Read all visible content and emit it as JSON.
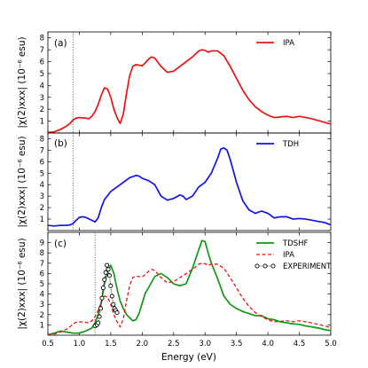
{
  "chart_data": {
    "type": "line",
    "xlabel": "Energy (eV)",
    "x_ticks": [
      "0.5",
      "1.0",
      "1.5",
      "2.0",
      "2.5",
      "3.0",
      "3.5",
      "4.0",
      "4.5",
      "5.0"
    ],
    "xlim": [
      0.5,
      5.0
    ],
    "panels": [
      {
        "label": "(a)",
        "ylabel": "|χ(2)xxx| (10⁻⁶ esu)",
        "ylim": [
          0,
          8.5
        ],
        "y_ticks": [
          1,
          2,
          3,
          4,
          5,
          6,
          7,
          8
        ],
        "vline": 0.9,
        "legend_position": "top-right",
        "series": [
          {
            "name": "IPA",
            "color": "#ee1111",
            "dash": "solid",
            "x": [
              0.5,
              0.6,
              0.7,
              0.8,
              0.85,
              0.9,
              0.95,
              1.0,
              1.1,
              1.15,
              1.2,
              1.25,
              1.3,
              1.35,
              1.4,
              1.45,
              1.5,
              1.55,
              1.6,
              1.65,
              1.7,
              1.75,
              1.8,
              1.85,
              1.9,
              2.0,
              2.05,
              2.1,
              2.15,
              2.2,
              2.3,
              2.4,
              2.5,
              2.6,
              2.7,
              2.8,
              2.9,
              2.95,
              3.0,
              3.05,
              3.1,
              3.2,
              3.3,
              3.4,
              3.5,
              3.6,
              3.7,
              3.8,
              3.9,
              4.0,
              4.1,
              4.2,
              4.3,
              4.4,
              4.5,
              4.6,
              4.7,
              4.8,
              4.9,
              5.0
            ],
            "y": [
              0.05,
              0.1,
              0.3,
              0.6,
              0.8,
              1.1,
              1.25,
              1.3,
              1.25,
              1.2,
              1.4,
              1.8,
              2.4,
              3.2,
              3.8,
              3.7,
              3.0,
              2.0,
              1.3,
              0.8,
              1.6,
              3.3,
              4.8,
              5.6,
              5.75,
              5.65,
              5.9,
              6.2,
              6.4,
              6.3,
              5.6,
              5.1,
              5.2,
              5.6,
              6.0,
              6.4,
              6.9,
              7.0,
              6.95,
              6.8,
              6.9,
              6.9,
              6.5,
              5.6,
              4.6,
              3.6,
              2.8,
              2.2,
              1.8,
              1.5,
              1.3,
              1.35,
              1.4,
              1.3,
              1.4,
              1.3,
              1.2,
              1.05,
              0.9,
              0.75
            ]
          }
        ]
      },
      {
        "label": "(b)",
        "ylabel": "|χ(2)xxx| (10⁻⁶ esu)",
        "ylim": [
          0,
          8.5
        ],
        "y_ticks": [
          1,
          2,
          3,
          4,
          5,
          6,
          7,
          8
        ],
        "vline": 0.9,
        "legend_position": "top-right",
        "series": [
          {
            "name": "TDH",
            "color": "#1111ee",
            "dash": "solid",
            "x": [
              0.5,
              0.6,
              0.7,
              0.8,
              0.85,
              0.9,
              0.95,
              1.0,
              1.05,
              1.1,
              1.2,
              1.25,
              1.3,
              1.35,
              1.4,
              1.5,
              1.6,
              1.7,
              1.8,
              1.85,
              1.9,
              1.95,
              2.0,
              2.1,
              2.2,
              2.3,
              2.4,
              2.5,
              2.6,
              2.65,
              2.7,
              2.8,
              2.9,
              3.0,
              3.1,
              3.2,
              3.25,
              3.3,
              3.35,
              3.4,
              3.5,
              3.6,
              3.7,
              3.8,
              3.9,
              4.0,
              4.1,
              4.2,
              4.3,
              4.4,
              4.5,
              4.6,
              4.7,
              4.8,
              4.9,
              5.0
            ],
            "y": [
              0.45,
              0.4,
              0.45,
              0.45,
              0.5,
              0.6,
              0.9,
              1.15,
              1.2,
              1.15,
              0.9,
              0.75,
              1.1,
              2.0,
              2.7,
              3.4,
              3.8,
              4.2,
              4.6,
              4.7,
              4.8,
              4.75,
              4.55,
              4.35,
              4.0,
              3.0,
              2.65,
              2.8,
              3.1,
              3.0,
              2.7,
              3.0,
              3.8,
              4.2,
              5.0,
              6.3,
              7.1,
              7.2,
              7.0,
              6.2,
              4.2,
              2.6,
              1.8,
              1.5,
              1.7,
              1.5,
              1.1,
              1.2,
              1.2,
              1.0,
              1.05,
              1.0,
              0.9,
              0.8,
              0.7,
              0.5
            ]
          }
        ]
      },
      {
        "label": "(c)",
        "ylabel": "|χ(2)xxx| (10⁻⁶ esu)",
        "ylim": [
          0,
          10
        ],
        "y_ticks": [
          1,
          2,
          3,
          4,
          5,
          6,
          7,
          8,
          9
        ],
        "vline": 1.25,
        "legend_position": "top-right",
        "series": [
          {
            "name": "TDSHF",
            "color": "#119911",
            "dash": "solid",
            "x": [
              0.5,
              0.6,
              0.7,
              0.8,
              0.9,
              1.0,
              1.1,
              1.2,
              1.25,
              1.3,
              1.35,
              1.4,
              1.45,
              1.5,
              1.55,
              1.6,
              1.65,
              1.7,
              1.75,
              1.8,
              1.85,
              1.9,
              1.95,
              2.0,
              2.05,
              2.1,
              2.2,
              2.3,
              2.4,
              2.5,
              2.6,
              2.7,
              2.8,
              2.9,
              2.95,
              3.0,
              3.05,
              3.1,
              3.2,
              3.3,
              3.4,
              3.5,
              3.6,
              3.7,
              3.8,
              3.9,
              4.0,
              4.1,
              4.2,
              4.3,
              4.4,
              4.5,
              4.6,
              4.7,
              4.8,
              4.9,
              5.0
            ],
            "y": [
              0.05,
              0.2,
              0.4,
              0.3,
              0.2,
              0.2,
              0.4,
              0.7,
              1.2,
              2.0,
              3.2,
              5.0,
              6.2,
              6.8,
              6.0,
              4.5,
              3.3,
              2.6,
              2.0,
              1.7,
              1.4,
              1.5,
              2.1,
              3.1,
              4.1,
              4.6,
              5.7,
              6.0,
              5.6,
              5.0,
              4.8,
              5.0,
              6.5,
              8.3,
              9.2,
              9.1,
              8.0,
              7.0,
              5.5,
              3.8,
              3.0,
              2.6,
              2.3,
              2.1,
              1.9,
              1.9,
              1.6,
              1.5,
              1.3,
              1.2,
              1.1,
              1.05,
              0.9,
              0.8,
              0.7,
              0.55,
              0.45
            ]
          },
          {
            "name": "IPA",
            "color": "#ee1111",
            "dash": "dashed",
            "x": [
              0.5,
              0.6,
              0.7,
              0.8,
              0.85,
              0.9,
              0.95,
              1.0,
              1.1,
              1.15,
              1.2,
              1.25,
              1.3,
              1.35,
              1.4,
              1.45,
              1.5,
              1.55,
              1.6,
              1.65,
              1.7,
              1.75,
              1.8,
              1.85,
              1.9,
              2.0,
              2.05,
              2.1,
              2.15,
              2.2,
              2.3,
              2.4,
              2.5,
              2.6,
              2.7,
              2.8,
              2.9,
              2.95,
              3.0,
              3.05,
              3.1,
              3.2,
              3.3,
              3.4,
              3.5,
              3.6,
              3.7,
              3.8,
              3.9,
              4.0,
              4.1,
              4.2,
              4.3,
              4.4,
              4.5,
              4.6,
              4.7,
              4.8,
              4.9,
              5.0
            ],
            "y": [
              0.05,
              0.1,
              0.3,
              0.6,
              0.8,
              1.1,
              1.25,
              1.3,
              1.25,
              1.2,
              1.4,
              1.8,
              2.4,
              3.2,
              3.8,
              3.7,
              3.0,
              2.0,
              1.3,
              0.8,
              1.6,
              3.3,
              4.8,
              5.6,
              5.75,
              5.65,
              5.9,
              6.2,
              6.4,
              6.3,
              5.6,
              5.1,
              5.2,
              5.6,
              6.0,
              6.4,
              6.9,
              7.0,
              6.95,
              6.8,
              6.9,
              6.9,
              6.5,
              5.6,
              4.6,
              3.6,
              2.8,
              2.2,
              1.8,
              1.5,
              1.3,
              1.35,
              1.4,
              1.3,
              1.4,
              1.3,
              1.2,
              1.05,
              0.9,
              0.75
            ]
          },
          {
            "name": "EXPERIMENT",
            "color": "#000000",
            "dash": "dotted-markers",
            "x": [
              1.25,
              1.28,
              1.3,
              1.32,
              1.34,
              1.36,
              1.38,
              1.4,
              1.42,
              1.44,
              1.46,
              1.48,
              1.5,
              1.52,
              1.54,
              1.56,
              1.58,
              1.6
            ],
            "y": [
              0.9,
              1.0,
              1.2,
              1.8,
              2.6,
              3.6,
              4.6,
              5.4,
              6.1,
              6.8,
              6.4,
              5.8,
              4.8,
              3.8,
              3.0,
              2.6,
              2.4,
              2.2
            ]
          }
        ]
      }
    ]
  }
}
